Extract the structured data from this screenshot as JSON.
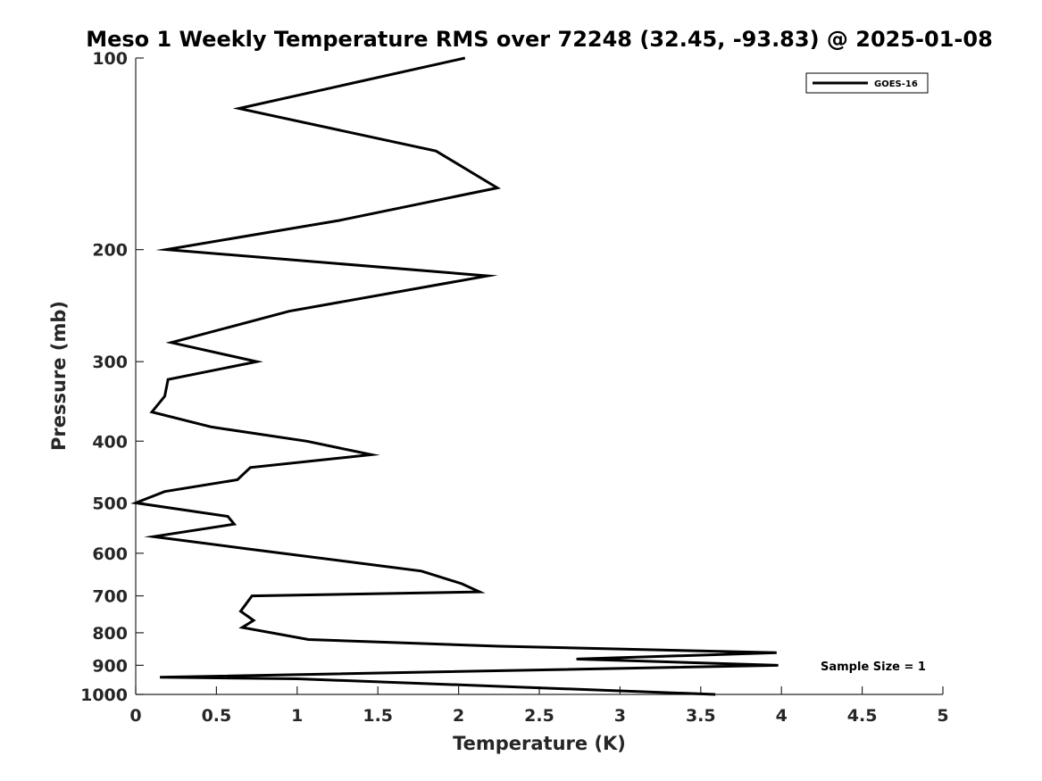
{
  "chart_data": {
    "type": "line",
    "title": "Meso 1 Weekly Temperature RMS over 72248 (32.45, -93.83) @ 2025-01-08",
    "xlabel": "Temperature (K)",
    "ylabel": "Pressure (mb)",
    "xlim": [
      0,
      5
    ],
    "ylim": [
      100,
      1000
    ],
    "y_scale": "log",
    "y_reversed": true,
    "x_ticks": [
      "0",
      "0.5",
      "1",
      "1.5",
      "2",
      "2.5",
      "3",
      "3.5",
      "4",
      "4.5",
      "5"
    ],
    "y_ticks": [
      "100",
      "200",
      "300",
      "400",
      "500",
      "600",
      "700",
      "800",
      "900",
      "1000"
    ],
    "grid": false,
    "legend_position": "top-right",
    "annotation": "Sample Size = 1",
    "series": [
      {
        "name": "GOES-16",
        "color": "#000000",
        "points": [
          {
            "x": 2.04,
            "p": 100
          },
          {
            "x": 0.64,
            "p": 120
          },
          {
            "x": 1.86,
            "p": 140
          },
          {
            "x": 2.24,
            "p": 160
          },
          {
            "x": 1.26,
            "p": 180
          },
          {
            "x": 0.19,
            "p": 200
          },
          {
            "x": 2.18,
            "p": 220
          },
          {
            "x": 0.95,
            "p": 250
          },
          {
            "x": 0.22,
            "p": 280
          },
          {
            "x": 0.75,
            "p": 300
          },
          {
            "x": 0.2,
            "p": 320
          },
          {
            "x": 0.18,
            "p": 340
          },
          {
            "x": 0.1,
            "p": 360
          },
          {
            "x": 0.47,
            "p": 380
          },
          {
            "x": 1.06,
            "p": 400
          },
          {
            "x": 1.46,
            "p": 420
          },
          {
            "x": 0.71,
            "p": 440
          },
          {
            "x": 0.63,
            "p": 460
          },
          {
            "x": 0.18,
            "p": 480
          },
          {
            "x": 0.0,
            "p": 500
          },
          {
            "x": 0.57,
            "p": 525
          },
          {
            "x": 0.61,
            "p": 540
          },
          {
            "x": 0.11,
            "p": 565
          },
          {
            "x": 0.68,
            "p": 590
          },
          {
            "x": 1.77,
            "p": 640
          },
          {
            "x": 2.02,
            "p": 670
          },
          {
            "x": 2.13,
            "p": 690
          },
          {
            "x": 0.72,
            "p": 700
          },
          {
            "x": 0.65,
            "p": 740
          },
          {
            "x": 0.73,
            "p": 765
          },
          {
            "x": 0.66,
            "p": 785
          },
          {
            "x": 1.07,
            "p": 820
          },
          {
            "x": 2.25,
            "p": 840
          },
          {
            "x": 3.97,
            "p": 860
          },
          {
            "x": 2.73,
            "p": 880
          },
          {
            "x": 3.98,
            "p": 900
          },
          {
            "x": 0.15,
            "p": 940
          },
          {
            "x": 1.0,
            "p": 945
          },
          {
            "x": 3.59,
            "p": 1000
          }
        ]
      }
    ]
  }
}
